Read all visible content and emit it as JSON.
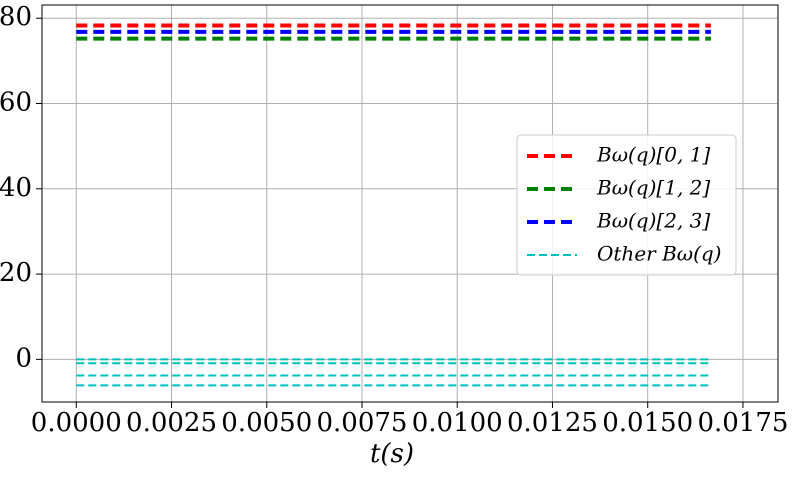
{
  "chart_data": {
    "type": "line",
    "xlabel": "t(s)",
    "x": [
      0,
      0.01666
    ],
    "series": [
      {
        "name": "Bω(q)[0, 1]",
        "color": "#ff0000",
        "values": [
          78.3,
          78.3
        ],
        "style": "thick"
      },
      {
        "name": "Bω(q)[1, 2]",
        "color": "#008000",
        "values": [
          75.2,
          75.2
        ],
        "style": "thick"
      },
      {
        "name": "Bω(q)[2, 3]",
        "color": "#0000ff",
        "values": [
          76.8,
          76.8
        ],
        "style": "thick"
      },
      {
        "name": "Other Bω(q)",
        "color": "#00bfbf",
        "values": [
          0,
          0
        ],
        "style": "thin"
      },
      {
        "color": "#00bfbf",
        "values": [
          -0.9,
          -0.9
        ],
        "style": "thin"
      },
      {
        "color": "#00bfbf",
        "values": [
          -3.8,
          -3.8
        ],
        "style": "thin"
      },
      {
        "color": "#00bfbf",
        "values": [
          -6.1,
          -6.1
        ],
        "style": "thin"
      }
    ],
    "xlim": [
      -0.0009,
      0.01842
    ],
    "ylim": [
      -10,
      83.1
    ],
    "xticks": [
      {
        "value": 0,
        "label": "0.0000"
      },
      {
        "value": 0.0025,
        "label": "0.0025"
      },
      {
        "value": 0.005,
        "label": "0.0050"
      },
      {
        "value": 0.0075,
        "label": "0.0075"
      },
      {
        "value": 0.01,
        "label": "0.0100"
      },
      {
        "value": 0.0125,
        "label": "0.0125"
      },
      {
        "value": 0.015,
        "label": "0.0150"
      },
      {
        "value": 0.0175,
        "label": "0.0175"
      }
    ],
    "yticks": [
      0,
      20,
      40,
      60,
      80
    ],
    "grid": true,
    "legend": "center right"
  }
}
